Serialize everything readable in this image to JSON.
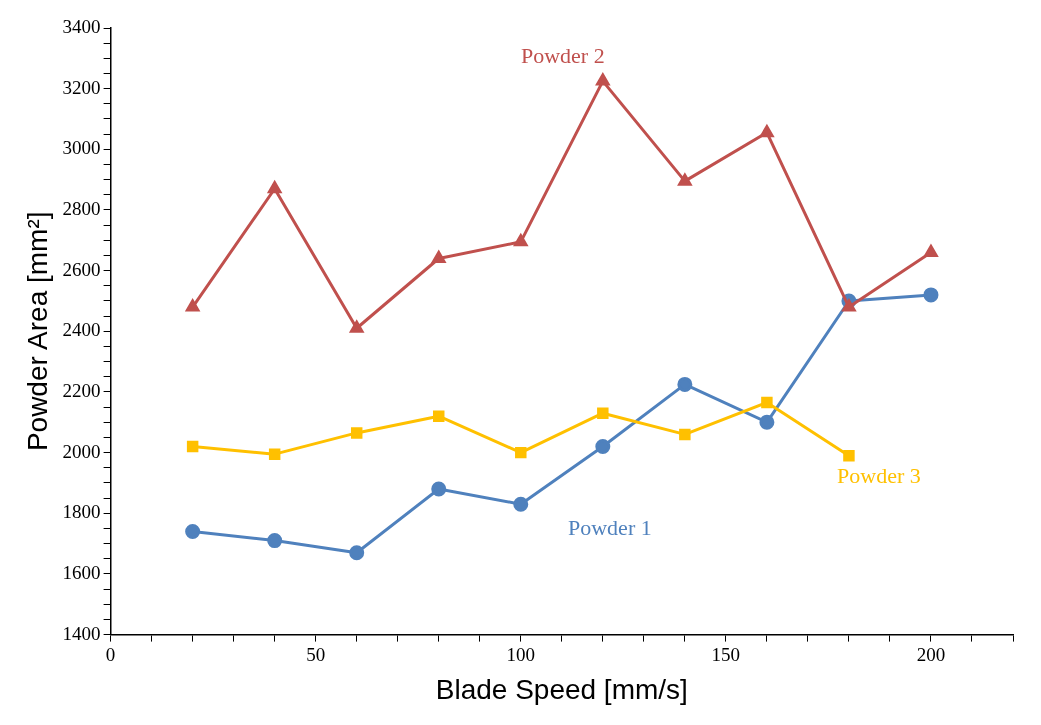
{
  "chart_data": {
    "type": "line",
    "xlabel": "Blade Speed [mm/s]",
    "ylabel": "Powder Area [mm²]",
    "xlim": [
      0,
      220
    ],
    "ylim": [
      1400,
      3400
    ],
    "xticks": [
      0,
      {
        "value": 10,
        "label": null
      },
      {
        "value": 20,
        "label": null
      },
      {
        "value": 30,
        "label": null
      },
      {
        "value": 40,
        "label": null
      },
      50,
      {
        "value": 60,
        "label": null
      },
      {
        "value": 70,
        "label": null
      },
      {
        "value": 80,
        "label": null
      },
      {
        "value": 90,
        "label": null
      },
      100,
      {
        "value": 110,
        "label": null
      },
      {
        "value": 120,
        "label": null
      },
      {
        "value": 130,
        "label": null
      },
      {
        "value": 140,
        "label": null
      },
      150,
      {
        "value": 160,
        "label": null
      },
      {
        "value": 170,
        "label": null
      },
      {
        "value": 180,
        "label": null
      },
      {
        "value": 190,
        "label": null
      },
      200,
      {
        "value": 210,
        "label": null
      },
      {
        "value": 220,
        "label": null
      }
    ],
    "yticks": [
      1400,
      {
        "value": 1450,
        "label": null
      },
      {
        "value": 1500,
        "label": null
      },
      {
        "value": 1550,
        "label": null
      },
      1600,
      {
        "value": 1650,
        "label": null
      },
      {
        "value": 1700,
        "label": null
      },
      {
        "value": 1750,
        "label": null
      },
      1800,
      {
        "value": 1850,
        "label": null
      },
      {
        "value": 1900,
        "label": null
      },
      {
        "value": 1950,
        "label": null
      },
      2000,
      {
        "value": 2050,
        "label": null
      },
      {
        "value": 2100,
        "label": null
      },
      {
        "value": 2150,
        "label": null
      },
      2200,
      {
        "value": 2250,
        "label": null
      },
      {
        "value": 2300,
        "label": null
      },
      {
        "value": 2350,
        "label": null
      },
      2400,
      {
        "value": 2450,
        "label": null
      },
      {
        "value": 2500,
        "label": null
      },
      {
        "value": 2550,
        "label": null
      },
      2600,
      {
        "value": 2650,
        "label": null
      },
      {
        "value": 2700,
        "label": null
      },
      {
        "value": 2750,
        "label": null
      },
      2800,
      {
        "value": 2850,
        "label": null
      },
      {
        "value": 2900,
        "label": null
      },
      {
        "value": 2950,
        "label": null
      },
      3000,
      {
        "value": 3050,
        "label": null
      },
      {
        "value": 3100,
        "label": null
      },
      {
        "value": 3150,
        "label": null
      },
      3200,
      {
        "value": 3250,
        "label": null
      },
      {
        "value": 3300,
        "label": null
      },
      {
        "value": 3350,
        "label": null
      },
      3400
    ],
    "grid": false,
    "legend": false,
    "line_style": "solid",
    "x": [
      20,
      40,
      60,
      80,
      100,
      120,
      140,
      160,
      180,
      200
    ],
    "series": [
      {
        "name": "Powder 1",
        "color": "#4f81bd",
        "marker": "circle",
        "values": [
          1740,
          1710,
          1670,
          1880,
          1830,
          2020,
          2225,
          2100,
          2500,
          2520
        ]
      },
      {
        "name": "Powder 2",
        "color": "#c0504d",
        "marker": "triangle",
        "values": [
          2480,
          2870,
          2410,
          2640,
          2695,
          3225,
          2895,
          3055,
          2480,
          2660
        ]
      },
      {
        "name": "Powder 3",
        "color": "#ffc000",
        "marker": "square",
        "values": [
          2020,
          1995,
          2065,
          2120,
          2000,
          2130,
          2060,
          2165,
          1990,
          null
        ]
      }
    ]
  }
}
